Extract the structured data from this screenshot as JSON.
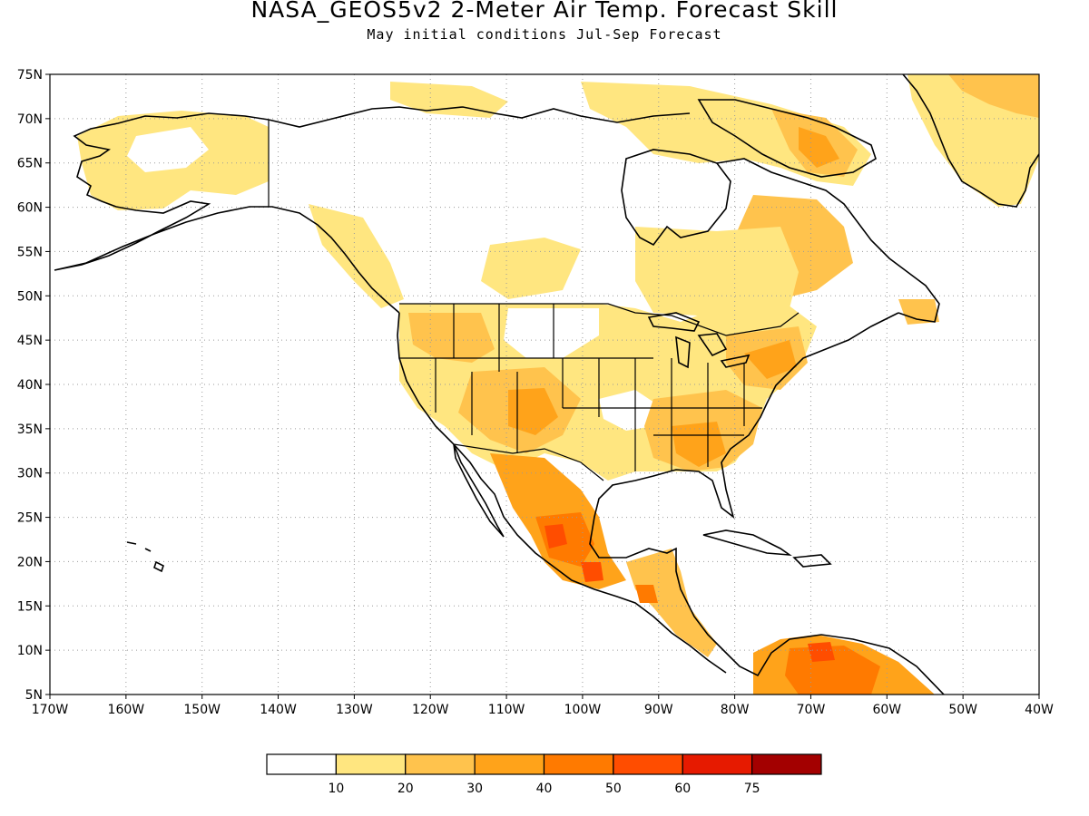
{
  "title": "NASA_GEOS5v2 2-Meter Air Temp. Forecast Skill",
  "subtitle": "May initial conditions   Jul-Sep Forecast",
  "map": {
    "lon_range": [
      -170,
      -40
    ],
    "lat_range": [
      5,
      75
    ],
    "lat_ticks": [
      {
        "value": 75,
        "label": "75N"
      },
      {
        "value": 70,
        "label": "70N"
      },
      {
        "value": 65,
        "label": "65N"
      },
      {
        "value": 60,
        "label": "60N"
      },
      {
        "value": 55,
        "label": "55N"
      },
      {
        "value": 50,
        "label": "50N"
      },
      {
        "value": 45,
        "label": "45N"
      },
      {
        "value": 40,
        "label": "40N"
      },
      {
        "value": 35,
        "label": "35N"
      },
      {
        "value": 30,
        "label": "30N"
      },
      {
        "value": 25,
        "label": "25N"
      },
      {
        "value": 20,
        "label": "20N"
      },
      {
        "value": 15,
        "label": "15N"
      },
      {
        "value": 10,
        "label": "10N"
      },
      {
        "value": 5,
        "label": "5N"
      }
    ],
    "lon_ticks": [
      {
        "value": -170,
        "label": "170W"
      },
      {
        "value": -160,
        "label": "160W"
      },
      {
        "value": -150,
        "label": "150W"
      },
      {
        "value": -140,
        "label": "140W"
      },
      {
        "value": -130,
        "label": "130W"
      },
      {
        "value": -120,
        "label": "120W"
      },
      {
        "value": -110,
        "label": "110W"
      },
      {
        "value": -100,
        "label": "100W"
      },
      {
        "value": -90,
        "label": "90W"
      },
      {
        "value": -80,
        "label": "80W"
      },
      {
        "value": -70,
        "label": "70W"
      },
      {
        "value": -60,
        "label": "60W"
      },
      {
        "value": -50,
        "label": "50W"
      },
      {
        "value": -40,
        "label": "40W"
      }
    ],
    "grid": "dotted"
  },
  "colorbar": {
    "colors": [
      "#ffffff",
      "#ffe680",
      "#ffc34d",
      "#ffa31a",
      "#ff7a00",
      "#ff4d00",
      "#e61a00",
      "#a30000"
    ],
    "labels": [
      "10",
      "20",
      "30",
      "40",
      "50",
      "60",
      "75"
    ]
  },
  "skill_regions": [
    {
      "id": "alaska-west",
      "level": 1,
      "lon": -160,
      "lat": 64
    },
    {
      "id": "canada-north",
      "level": 1,
      "lon": -100,
      "lat": 68
    },
    {
      "id": "canada-east",
      "level": 2,
      "lon": -72,
      "lat": 67
    },
    {
      "id": "greenland",
      "level": 2,
      "lon": -45,
      "lat": 70
    },
    {
      "id": "quebec",
      "level": 1,
      "lon": -75,
      "lat": 55
    },
    {
      "id": "us-west",
      "level": 2,
      "lon": -117,
      "lat": 42
    },
    {
      "id": "us-southwest",
      "level": 3,
      "lon": -108,
      "lat": 36
    },
    {
      "id": "us-southeast",
      "level": 3,
      "lon": -85,
      "lat": 33
    },
    {
      "id": "us-northeast",
      "level": 3,
      "lon": -75,
      "lat": 42
    },
    {
      "id": "mexico",
      "level": 4,
      "lon": -103,
      "lat": 23
    },
    {
      "id": "central-america",
      "level": 3,
      "lon": -88,
      "lat": 15
    },
    {
      "id": "south-america-north",
      "level": 4,
      "lon": -68,
      "lat": 8
    }
  ]
}
